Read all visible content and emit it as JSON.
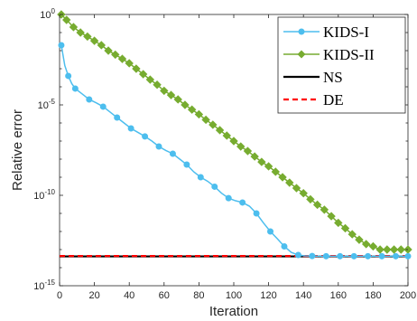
{
  "chart_data": {
    "type": "line",
    "xlabel": "Iteration",
    "ylabel": "Relative  error",
    "xlim": [
      0,
      200
    ],
    "ylim": [
      1e-15,
      1
    ],
    "y_scale": "log",
    "x_ticks": [
      0,
      20,
      40,
      60,
      80,
      100,
      120,
      140,
      160,
      180,
      200
    ],
    "y_ticks": [
      {
        "value": 1,
        "base": "10",
        "exp": "0"
      },
      {
        "value": 1e-05,
        "base": "10",
        "exp": "-5"
      },
      {
        "value": 1e-10,
        "base": "10",
        "exp": "-10"
      },
      {
        "value": 1e-15,
        "base": "10",
        "exp": "-15"
      }
    ],
    "grid": false,
    "legend_position": "top-right",
    "series": [
      {
        "name": "KIDS-I",
        "color": "#4dbeee",
        "marker": "circle",
        "line_style": "solid",
        "x": [
          1,
          3,
          5,
          7,
          9,
          13,
          17,
          21,
          25,
          29,
          33,
          37,
          41,
          45,
          49,
          53,
          57,
          61,
          65,
          69,
          73,
          77,
          81,
          85,
          89,
          93,
          97,
          101,
          105,
          109,
          113,
          117,
          121,
          125,
          129,
          133,
          137,
          141,
          145,
          149,
          153,
          157,
          161,
          165,
          169,
          173,
          177,
          181,
          185,
          189,
          193,
          197,
          200
        ],
        "y": [
          0.02,
          0.0015,
          0.0004,
          0.00015,
          8e-05,
          4e-05,
          2e-05,
          1.3e-05,
          8e-06,
          4e-06,
          2e-06,
          1e-06,
          5e-07,
          3e-07,
          1.8e-07,
          1e-07,
          5e-08,
          3e-08,
          2e-08,
          1e-08,
          5e-09,
          2e-09,
          1e-09,
          6e-10,
          3e-10,
          1.3e-10,
          7e-11,
          5e-11,
          4e-11,
          2.5e-11,
          1e-11,
          3e-12,
          1e-12,
          4e-13,
          1.5e-13,
          7e-14,
          5e-14,
          4.5e-14,
          4.4e-14,
          4.3e-14,
          4.3e-14,
          4.3e-14,
          4.3e-14,
          4.3e-14,
          4.3e-14,
          4.3e-14,
          4.3e-14,
          4.3e-14,
          4.3e-14,
          4.3e-14,
          4.3e-14,
          4.3e-14,
          4.3e-14
        ]
      },
      {
        "name": "KIDS-II",
        "color": "#77ac30",
        "marker": "diamond",
        "line_style": "solid",
        "x": [
          1,
          4,
          8,
          12,
          16,
          20,
          24,
          28,
          32,
          36,
          40,
          44,
          48,
          52,
          56,
          60,
          64,
          68,
          72,
          76,
          80,
          84,
          88,
          92,
          96,
          100,
          104,
          108,
          112,
          116,
          120,
          124,
          128,
          132,
          136,
          140,
          144,
          148,
          152,
          156,
          160,
          164,
          168,
          172,
          176,
          180,
          184,
          188,
          192,
          196,
          200
        ],
        "y": [
          1,
          0.5,
          0.2,
          0.1,
          0.06,
          0.035,
          0.02,
          0.01,
          0.006,
          0.0035,
          0.002,
          0.001,
          0.0005,
          0.00025,
          0.00013,
          6e-05,
          3.5e-05,
          2e-05,
          1e-05,
          5.5e-06,
          3e-06,
          1.5e-06,
          8e-07,
          4e-07,
          2e-07,
          1e-07,
          5e-08,
          2.8e-08,
          1.4e-08,
          7e-09,
          4e-09,
          2e-09,
          1e-09,
          5e-10,
          2.5e-10,
          1.3e-10,
          6e-11,
          3e-11,
          1.6e-11,
          7e-12,
          3e-12,
          1.5e-12,
          7e-13,
          3.5e-13,
          2e-13,
          1.5e-13,
          1e-13,
          1e-13,
          1e-13,
          1e-13,
          1e-13
        ]
      },
      {
        "name": "NS",
        "color": "#000000",
        "marker": "none",
        "line_style": "solid",
        "x": [
          0,
          200
        ],
        "y": [
          4.2e-14,
          4.2e-14
        ]
      },
      {
        "name": "DE",
        "color": "#ff0000",
        "marker": "none",
        "line_style": "dashed",
        "x": [
          0,
          200
        ],
        "y": [
          4.4e-14,
          4.4e-14
        ]
      }
    ]
  }
}
